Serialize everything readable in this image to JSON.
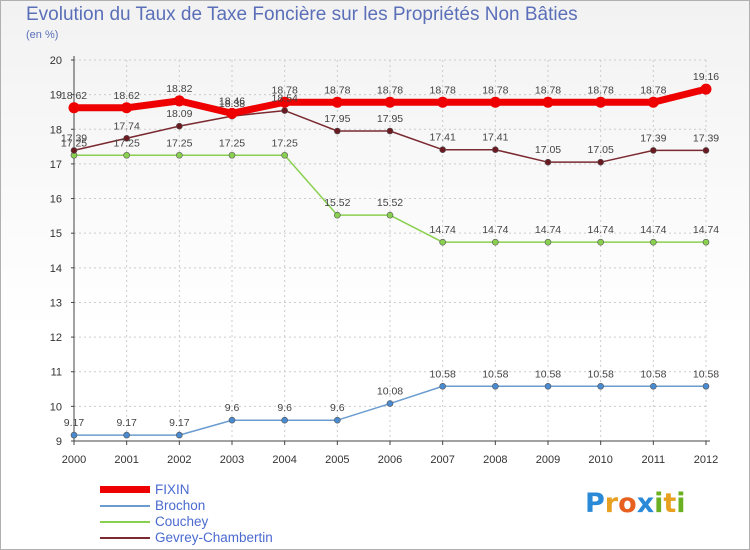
{
  "title": "Evolution du Taux de Taxe Foncière sur les Propriétés Non Bâties",
  "unit": "(en %)",
  "logo": {
    "letters": [
      "P",
      "r",
      "o",
      "x",
      "i",
      "t",
      "i"
    ],
    "colors": [
      "#2a8ad8",
      "#e8a020",
      "#e86020",
      "#2a8ad8",
      "#6ab020",
      "#e8a020",
      "#6ab020"
    ]
  },
  "chart_data": {
    "type": "line",
    "x": [
      2000,
      2001,
      2002,
      2003,
      2004,
      2005,
      2006,
      2007,
      2008,
      2009,
      2010,
      2011,
      2012
    ],
    "x_tick_labels": [
      "2000",
      "2001",
      "2002",
      "2003",
      "2004",
      "2005",
      "2006",
      "2007",
      "2008",
      "2009",
      "2010",
      "2011",
      "2012"
    ],
    "ylim": [
      9,
      20
    ],
    "y_ticks": [
      9,
      10,
      11,
      12,
      13,
      14,
      15,
      16,
      17,
      18,
      19,
      20
    ],
    "y_tick_labels": [
      "9",
      "10",
      "11",
      "12",
      "13",
      "14",
      "15",
      "16",
      "17",
      "18",
      "19",
      "20"
    ],
    "grid": true,
    "legend_position": "bottom-left",
    "series": [
      {
        "name": "FIXIN",
        "color": "#ee0000",
        "width": 7,
        "marker_fill": "#ee0000",
        "marker_r": 5.5,
        "values": [
          18.62,
          18.62,
          18.82,
          18.46,
          18.78,
          18.78,
          18.78,
          18.78,
          18.78,
          18.78,
          18.78,
          18.78,
          19.16
        ],
        "labels": [
          "18.62",
          "18.62",
          "18.82",
          "18.46",
          "18.78",
          "18.78",
          "18.78",
          "18.78",
          "18.78",
          "18.78",
          "18.78",
          "18.78",
          "19.16"
        ]
      },
      {
        "name": "Brochon",
        "color": "#6a9ccf",
        "width": 1.5,
        "marker_fill": "#4a8ad0",
        "marker_r": 3,
        "values": [
          9.17,
          9.17,
          9.17,
          9.6,
          9.6,
          9.6,
          10.08,
          10.58,
          10.58,
          10.58,
          10.58,
          10.58,
          10.58
        ],
        "labels": [
          "9.17",
          "9.17",
          "9.17",
          "9.6",
          "9.6",
          "9.6",
          "10.08",
          "10.58",
          "10.58",
          "10.58",
          "10.58",
          "10.58",
          "10.58"
        ]
      },
      {
        "name": "Couchey",
        "color": "#8ad050",
        "width": 1.5,
        "marker_fill": "#8ad050",
        "marker_r": 3,
        "values": [
          17.25,
          17.25,
          17.25,
          17.25,
          17.25,
          15.52,
          15.52,
          14.74,
          14.74,
          14.74,
          14.74,
          14.74,
          14.74
        ],
        "labels": [
          "17.25",
          "17.25",
          "17.25",
          "17.25",
          "17.25",
          "15.52",
          "15.52",
          "14.74",
          "14.74",
          "14.74",
          "14.74",
          "14.74",
          "14.74"
        ]
      },
      {
        "name": "Gevrey-Chambertin",
        "color": "#7a2a30",
        "width": 1.5,
        "marker_fill": "#6a1a20",
        "marker_r": 3,
        "values": [
          17.39,
          17.74,
          18.09,
          18.38,
          18.54,
          17.95,
          17.95,
          17.41,
          17.41,
          17.05,
          17.05,
          17.39,
          17.39
        ],
        "labels": [
          "17.39",
          "17.74",
          "18.09",
          "18.38",
          "18.54",
          "17.95",
          "17.95",
          "17.41",
          "17.41",
          "17.05",
          "17.05",
          "17.39",
          "17.39"
        ]
      }
    ]
  }
}
